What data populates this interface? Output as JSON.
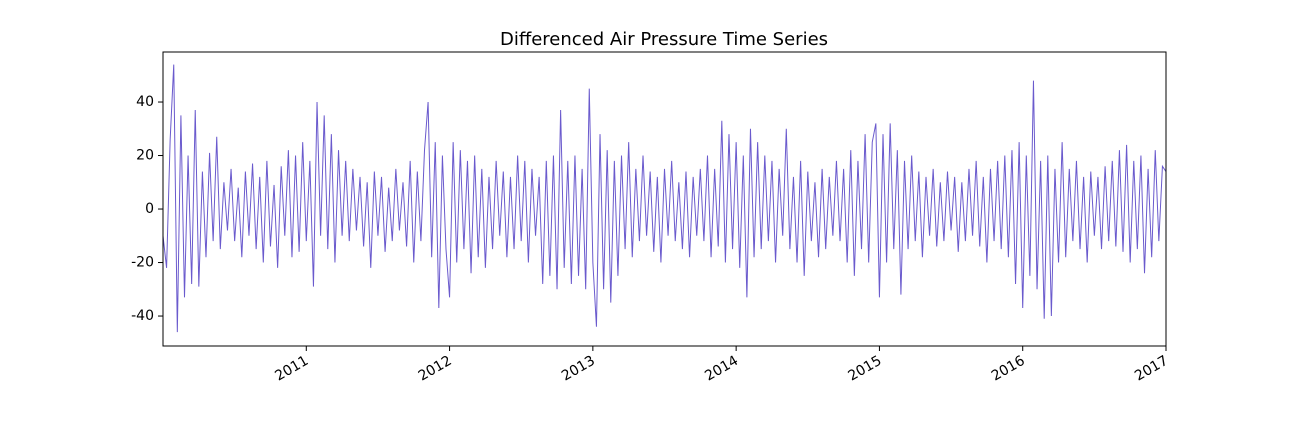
{
  "chart_data": {
    "type": "line",
    "title": "Differenced Air Pressure Time Series",
    "xlim": [
      2010,
      2017
    ],
    "xticks": [
      2011,
      2012,
      2013,
      2014,
      2015,
      2016,
      2017
    ],
    "ylim": [
      -51.2,
      58.7
    ],
    "yticks": [
      -40,
      -20,
      0,
      20,
      40
    ],
    "grid": false,
    "series": [
      {
        "color": "#6a5acd",
        "x": [
          2010,
          2010.025,
          2010.05,
          2010.075,
          2010.1,
          2010.125,
          2010.15,
          2010.175,
          2010.2,
          2010.225,
          2010.25,
          2010.275,
          2010.3,
          2010.325,
          2010.35,
          2010.375,
          2010.4,
          2010.425,
          2010.45,
          2010.475,
          2010.5,
          2010.525,
          2010.55,
          2010.575,
          2010.6,
          2010.625,
          2010.65,
          2010.675,
          2010.7,
          2010.725,
          2010.75,
          2010.775,
          2010.8,
          2010.825,
          2010.85,
          2010.875,
          2010.9,
          2010.925,
          2010.95,
          2010.975,
          2011,
          2011.025,
          2011.05,
          2011.075,
          2011.1,
          2011.125,
          2011.15,
          2011.175,
          2011.2,
          2011.225,
          2011.25,
          2011.275,
          2011.3,
          2011.325,
          2011.35,
          2011.375,
          2011.4,
          2011.425,
          2011.45,
          2011.475,
          2011.5,
          2011.525,
          2011.55,
          2011.575,
          2011.6,
          2011.625,
          2011.65,
          2011.675,
          2011.7,
          2011.725,
          2011.75,
          2011.775,
          2011.8,
          2011.825,
          2011.85,
          2011.875,
          2011.9,
          2011.925,
          2011.95,
          2011.975,
          2012,
          2012.025,
          2012.05,
          2012.075,
          2012.1,
          2012.125,
          2012.15,
          2012.175,
          2012.2,
          2012.225,
          2012.25,
          2012.275,
          2012.3,
          2012.325,
          2012.35,
          2012.375,
          2012.4,
          2012.425,
          2012.45,
          2012.475,
          2012.5,
          2012.525,
          2012.55,
          2012.575,
          2012.6,
          2012.625,
          2012.65,
          2012.675,
          2012.7,
          2012.725,
          2012.75,
          2012.775,
          2012.8,
          2012.825,
          2012.85,
          2012.875,
          2012.9,
          2012.925,
          2012.95,
          2012.975,
          2013,
          2013.025,
          2013.05,
          2013.075,
          2013.1,
          2013.125,
          2013.15,
          2013.175,
          2013.2,
          2013.225,
          2013.25,
          2013.275,
          2013.3,
          2013.325,
          2013.35,
          2013.375,
          2013.4,
          2013.425,
          2013.45,
          2013.475,
          2013.5,
          2013.525,
          2013.55,
          2013.575,
          2013.6,
          2013.625,
          2013.65,
          2013.675,
          2013.7,
          2013.725,
          2013.75,
          2013.775,
          2013.8,
          2013.825,
          2013.85,
          2013.875,
          2013.9,
          2013.925,
          2013.95,
          2013.975,
          2014,
          2014.025,
          2014.05,
          2014.075,
          2014.1,
          2014.125,
          2014.15,
          2014.175,
          2014.2,
          2014.225,
          2014.25,
          2014.275,
          2014.3,
          2014.325,
          2014.35,
          2014.375,
          2014.4,
          2014.425,
          2014.45,
          2014.475,
          2014.5,
          2014.525,
          2014.55,
          2014.575,
          2014.6,
          2014.625,
          2014.65,
          2014.675,
          2014.7,
          2014.725,
          2014.75,
          2014.775,
          2014.8,
          2014.825,
          2014.85,
          2014.875,
          2014.9,
          2014.925,
          2014.95,
          2014.975,
          2015,
          2015.025,
          2015.05,
          2015.075,
          2015.1,
          2015.125,
          2015.15,
          2015.175,
          2015.2,
          2015.225,
          2015.25,
          2015.275,
          2015.3,
          2015.325,
          2015.35,
          2015.375,
          2015.4,
          2015.425,
          2015.45,
          2015.475,
          2015.5,
          2015.525,
          2015.55,
          2015.575,
          2015.6,
          2015.625,
          2015.65,
          2015.675,
          2015.7,
          2015.725,
          2015.75,
          2015.775,
          2015.8,
          2015.825,
          2015.85,
          2015.875,
          2015.9,
          2015.925,
          2015.95,
          2015.975,
          2016,
          2016.025,
          2016.05,
          2016.075,
          2016.1,
          2016.125,
          2016.15,
          2016.175,
          2016.2,
          2016.225,
          2016.25,
          2016.275,
          2016.3,
          2016.325,
          2016.35,
          2016.375,
          2016.4,
          2016.425,
          2016.45,
          2016.475,
          2016.5,
          2016.525,
          2016.55,
          2016.575,
          2016.6,
          2016.625,
          2016.65,
          2016.675,
          2016.7,
          2016.725,
          2016.75,
          2016.775,
          2016.8,
          2016.825,
          2016.85,
          2016.875,
          2016.9,
          2016.925,
          2016.95,
          2016.975,
          2017
        ],
        "values": [
          -10,
          -22,
          26,
          54,
          -46,
          35,
          -33,
          20,
          -28,
          37,
          -29,
          14,
          -18,
          21,
          -12,
          27,
          -15,
          10,
          -8,
          15,
          -12,
          8,
          -18,
          14,
          -10,
          17,
          -15,
          12,
          -20,
          18,
          -14,
          9,
          -22,
          16,
          -10,
          22,
          -18,
          20,
          -16,
          25,
          -12,
          18,
          -29,
          40,
          -10,
          35,
          -15,
          28,
          -20,
          22,
          -10,
          18,
          -12,
          15,
          -8,
          12,
          -14,
          10,
          -22,
          14,
          -10,
          12,
          -16,
          8,
          -12,
          15,
          -8,
          10,
          -14,
          18,
          -20,
          14,
          -12,
          22,
          40,
          -18,
          25,
          -37,
          20,
          -15,
          -33,
          25,
          -20,
          22,
          -15,
          18,
          -24,
          20,
          -18,
          15,
          -22,
          12,
          -15,
          18,
          -10,
          14,
          -18,
          12,
          -15,
          20,
          -12,
          18,
          -20,
          15,
          -10,
          12,
          -28,
          18,
          -25,
          20,
          -30,
          37,
          -22,
          18,
          -28,
          20,
          -25,
          15,
          -30,
          45,
          -20,
          -44,
          28,
          -30,
          22,
          -35,
          18,
          -25,
          20,
          -15,
          25,
          -18,
          15,
          -12,
          20,
          -10,
          14,
          -16,
          12,
          -20,
          15,
          -10,
          18,
          -12,
          10,
          -15,
          14,
          -18,
          12,
          -10,
          15,
          -12,
          20,
          -18,
          15,
          -14,
          33,
          -20,
          28,
          -15,
          25,
          -22,
          20,
          -33,
          30,
          -18,
          25,
          -15,
          20,
          -12,
          18,
          -20,
          15,
          -10,
          30,
          -15,
          12,
          -20,
          18,
          -25,
          14,
          -12,
          10,
          -18,
          15,
          -15,
          12,
          -10,
          18,
          -12,
          15,
          -20,
          22,
          -25,
          18,
          -15,
          28,
          -20,
          25,
          32,
          -33,
          28,
          -20,
          32,
          -15,
          22,
          -32,
          18,
          -15,
          20,
          -12,
          14,
          -18,
          12,
          -10,
          15,
          -14,
          10,
          -12,
          14,
          -8,
          12,
          -16,
          10,
          -12,
          15,
          -10,
          18,
          -14,
          12,
          -20,
          15,
          -12,
          18,
          -15,
          20,
          -18,
          22,
          -28,
          25,
          -37,
          20,
          -25,
          48,
          -30,
          18,
          -41,
          20,
          -40,
          15,
          -20,
          25,
          -18,
          15,
          -12,
          18,
          -15,
          12,
          -20,
          14,
          -10,
          12,
          -15,
          16,
          -12,
          18,
          -14,
          22,
          -16,
          24,
          -20,
          18,
          -15,
          20,
          -24,
          15,
          -18,
          22,
          -12,
          16,
          14
        ]
      }
    ]
  }
}
